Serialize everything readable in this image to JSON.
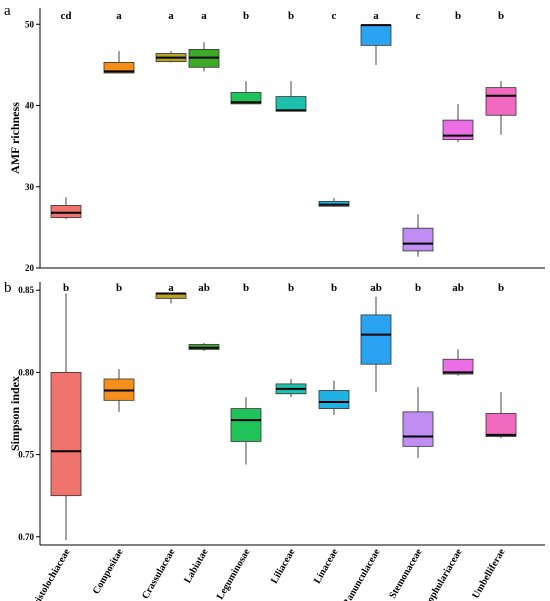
{
  "chart_data": [
    {
      "panel_label": "a",
      "type": "box",
      "ylabel": "AMF richness",
      "ylim": [
        20,
        52
      ],
      "yticks": [
        20,
        30,
        40,
        50
      ],
      "yticklabels": [
        "20",
        "30",
        "40",
        "50"
      ],
      "categories": [
        "Aristolochiaceae",
        "Compositae",
        "Crassulaceae",
        "Labiatae",
        "Leguminosae",
        "Liliaceae",
        "Linaceae",
        "Ranunculaceae",
        "Stemonaceae",
        "Scrophulariaceae",
        "Umbelliferae"
      ],
      "significance_letters": [
        "cd",
        "a",
        "a",
        "a",
        "b",
        "b",
        "c",
        "a",
        "c",
        "b",
        "b"
      ],
      "boxes": [
        {
          "min": 26.0,
          "q1": 26.2,
          "median": 26.8,
          "q3": 27.7,
          "max": 28.7
        },
        {
          "min": 44.0,
          "q1": 44.0,
          "median": 44.2,
          "q3": 45.3,
          "max": 46.7
        },
        {
          "min": 45.3,
          "q1": 45.4,
          "median": 45.9,
          "q3": 46.4,
          "max": 46.7
        },
        {
          "min": 44.2,
          "q1": 44.7,
          "median": 45.9,
          "q3": 46.9,
          "max": 47.8
        },
        {
          "min": 40.2,
          "q1": 40.2,
          "median": 40.4,
          "q3": 41.6,
          "max": 43.0
        },
        {
          "min": 39.3,
          "q1": 39.3,
          "median": 39.4,
          "q3": 41.1,
          "max": 43.0
        },
        {
          "min": 27.6,
          "q1": 27.6,
          "median": 27.8,
          "q3": 28.2,
          "max": 28.6
        },
        {
          "min": 45.0,
          "q1": 47.4,
          "median": 49.9,
          "q3": 49.9,
          "max": 49.9
        },
        {
          "min": 21.4,
          "q1": 22.1,
          "median": 23.0,
          "q3": 24.9,
          "max": 26.6
        },
        {
          "min": 35.5,
          "q1": 35.8,
          "median": 36.3,
          "q3": 38.2,
          "max": 40.2
        },
        {
          "min": 36.4,
          "q1": 38.8,
          "median": 41.2,
          "q3": 42.2,
          "max": 43.0
        }
      ]
    },
    {
      "panel_label": "b",
      "type": "box",
      "ylabel": "Simpson index",
      "ylim": [
        0.695,
        0.855
      ],
      "yticks": [
        0.7,
        0.75,
        0.8,
        0.85
      ],
      "yticklabels": [
        "0.70",
        "0.75",
        "0.80",
        "0.85"
      ],
      "categories": [
        "Aristolochiaceae",
        "Compositae",
        "Crassulaceae",
        "Labiatae",
        "Leguminosae",
        "Liliaceae",
        "Linaceae",
        "Ranunculaceae",
        "Stemonaceae",
        "Scrophulariaceae",
        "Umbelliferae"
      ],
      "significance_letters": [
        "b",
        "b",
        "a",
        "ab",
        "b",
        "b",
        "b",
        "ab",
        "b",
        "ab",
        "b"
      ],
      "boxes": [
        {
          "min": 0.698,
          "q1": 0.725,
          "median": 0.752,
          "q3": 0.8,
          "max": 0.848
        },
        {
          "min": 0.776,
          "q1": 0.783,
          "median": 0.789,
          "q3": 0.796,
          "max": 0.802
        },
        {
          "min": 0.842,
          "q1": 0.845,
          "median": 0.848,
          "q3": 0.848,
          "max": 0.848
        },
        {
          "min": 0.813,
          "q1": 0.814,
          "median": 0.815,
          "q3": 0.817,
          "max": 0.818
        },
        {
          "min": 0.744,
          "q1": 0.758,
          "median": 0.771,
          "q3": 0.778,
          "max": 0.785
        },
        {
          "min": 0.785,
          "q1": 0.787,
          "median": 0.79,
          "q3": 0.793,
          "max": 0.796
        },
        {
          "min": 0.774,
          "q1": 0.778,
          "median": 0.782,
          "q3": 0.789,
          "max": 0.795
        },
        {
          "min": 0.788,
          "q1": 0.805,
          "median": 0.823,
          "q3": 0.835,
          "max": 0.846
        },
        {
          "min": 0.748,
          "q1": 0.755,
          "median": 0.761,
          "q3": 0.776,
          "max": 0.791
        },
        {
          "min": 0.798,
          "q1": 0.799,
          "median": 0.8,
          "q3": 0.808,
          "max": 0.814
        },
        {
          "min": 0.76,
          "q1": 0.761,
          "median": 0.762,
          "q3": 0.775,
          "max": 0.788
        }
      ]
    }
  ],
  "colors": [
    "#f0736d",
    "#f58e1b",
    "#b5a323",
    "#3daa27",
    "#20c25a",
    "#1fbfae",
    "#1fb2e2",
    "#29a3f2",
    "#c08ef2",
    "#eb6ee5",
    "#f06bbf"
  ]
}
